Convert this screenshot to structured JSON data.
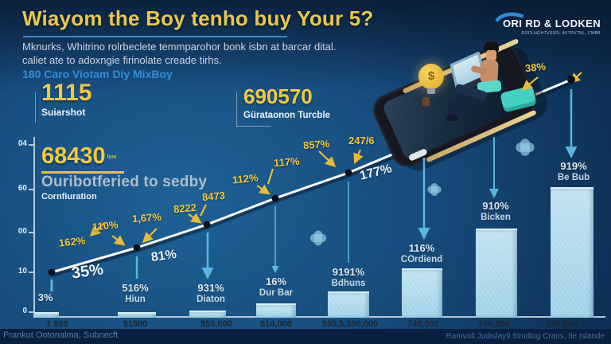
{
  "header": {
    "title": "Wiayom the Boy tenho buy Your 5?",
    "subtitle_line1": "Mknurks, Whitrino rolrbeclete temmparohor bonk isbn at barcar dital.",
    "subtitle_line2": "caliet ate to adoxngie firinolate creade tirhs.",
    "link_text": "180 Caro Viotam Diy MixBoy",
    "logo_name": "ORI RD & LODKEN",
    "logo_tagline": "ROOLNGHTVSSPL AVTRVTNL, CMBB"
  },
  "stats": [
    {
      "value": "1115",
      "label": "Suiarshot"
    },
    {
      "value": "68430",
      "superscript": "low",
      "label_primary": "Ouribotferied to sedby",
      "label_secondary": "Cornfiuration"
    },
    {
      "value": "690570",
      "label": "Gürataonon Turcble"
    }
  ],
  "icons": {
    "bulb_symbol": "$"
  },
  "chart": {
    "y_ticks": [
      "04",
      "60",
      "00",
      "10",
      "0"
    ],
    "x_labels": [
      "1 868",
      "$1500",
      "$55,000",
      "$14,000",
      "$05,5,506,000",
      "748,000",
      "758,000",
      "556,000"
    ],
    "annotations": [
      {
        "text": "162%",
        "style": "yellow"
      },
      {
        "text": "35%",
        "style": "white-large"
      },
      {
        "text": "110%",
        "style": "yellow"
      },
      {
        "text": "1,67%",
        "style": "yellow"
      },
      {
        "text": "81%",
        "style": "white"
      },
      {
        "text": "8222",
        "style": "yellow"
      },
      {
        "text": "8473",
        "style": "yellow"
      },
      {
        "text": "112%",
        "style": "yellow"
      },
      {
        "text": "117%",
        "style": "yellow"
      },
      {
        "text": "857%",
        "style": "yellow"
      },
      {
        "text": "247/6",
        "style": "yellow"
      },
      {
        "text": "177%",
        "style": "white"
      },
      {
        "text": "38%",
        "style": "yellow"
      }
    ],
    "marker_labels": [
      {
        "value": "3%",
        "name": ""
      },
      {
        "value": "516%",
        "name": "Hiun"
      },
      {
        "value": "931%",
        "name": "Diaton"
      },
      {
        "value": "16%",
        "name": "Dur Bar"
      },
      {
        "value": "9191%",
        "name": "Bdhuns"
      },
      {
        "value": "116%",
        "name": "COrdiend"
      },
      {
        "value": "910%",
        "name": "Bicken"
      },
      {
        "value": "919%",
        "name": "Be Bub"
      }
    ]
  },
  "footer": {
    "left": "Prankut Ootonalma, Subnecft",
    "right": "Ramvolt Judislay9 Itimdlog Crans, Ile Islande"
  },
  "colors": {
    "accent_yellow": "#f2c63e",
    "accent_cyan": "#5fc0ea",
    "bar_fill": "#a5d7ea",
    "line": "#ffffff",
    "link_blue": "#2f8fd6",
    "background_center": "#1e6297",
    "background_edge": "#0b2546"
  },
  "chart_data": [
    {
      "type": "line",
      "title": "Wiayom the Boy tenho buy Your 5?",
      "x": [
        "1 868",
        "$1500",
        "$55,000",
        "$14,000",
        "$05,5,506,000",
        "556,000"
      ],
      "values_est": [
        24,
        38,
        51,
        66,
        80,
        132
      ],
      "point_labels": [
        "3%",
        "516%",
        "931%",
        "16%",
        "9191%",
        "38%"
      ],
      "segment_labels": [
        "35%",
        "81%",
        "177%"
      ],
      "callout_labels": [
        "162%",
        "110%",
        "1,67%",
        "8222",
        "8473",
        "112%",
        "117%",
        "857%",
        "247/6",
        "38%"
      ],
      "y_tick_labels": [
        "04",
        "60",
        "00",
        "10",
        "0"
      ],
      "grid": false,
      "legend": "none"
    },
    {
      "type": "bar",
      "categories": [
        "1 868",
        "$1500",
        "$55,000",
        "$14,000",
        "$05,5,506,000",
        "748,000",
        "758,000",
        "556,000"
      ],
      "values_est": [
        2,
        2,
        3,
        7,
        14,
        27,
        49,
        72
      ],
      "bar_labels": [
        "3%",
        "516% Hiun",
        "931% Diaton",
        "16% Dur Bar",
        "9191% Bdhuns",
        "116% COrdiend",
        "910% Bicken",
        "919% Be Bub"
      ],
      "ylim": [
        0,
        100
      ]
    }
  ]
}
